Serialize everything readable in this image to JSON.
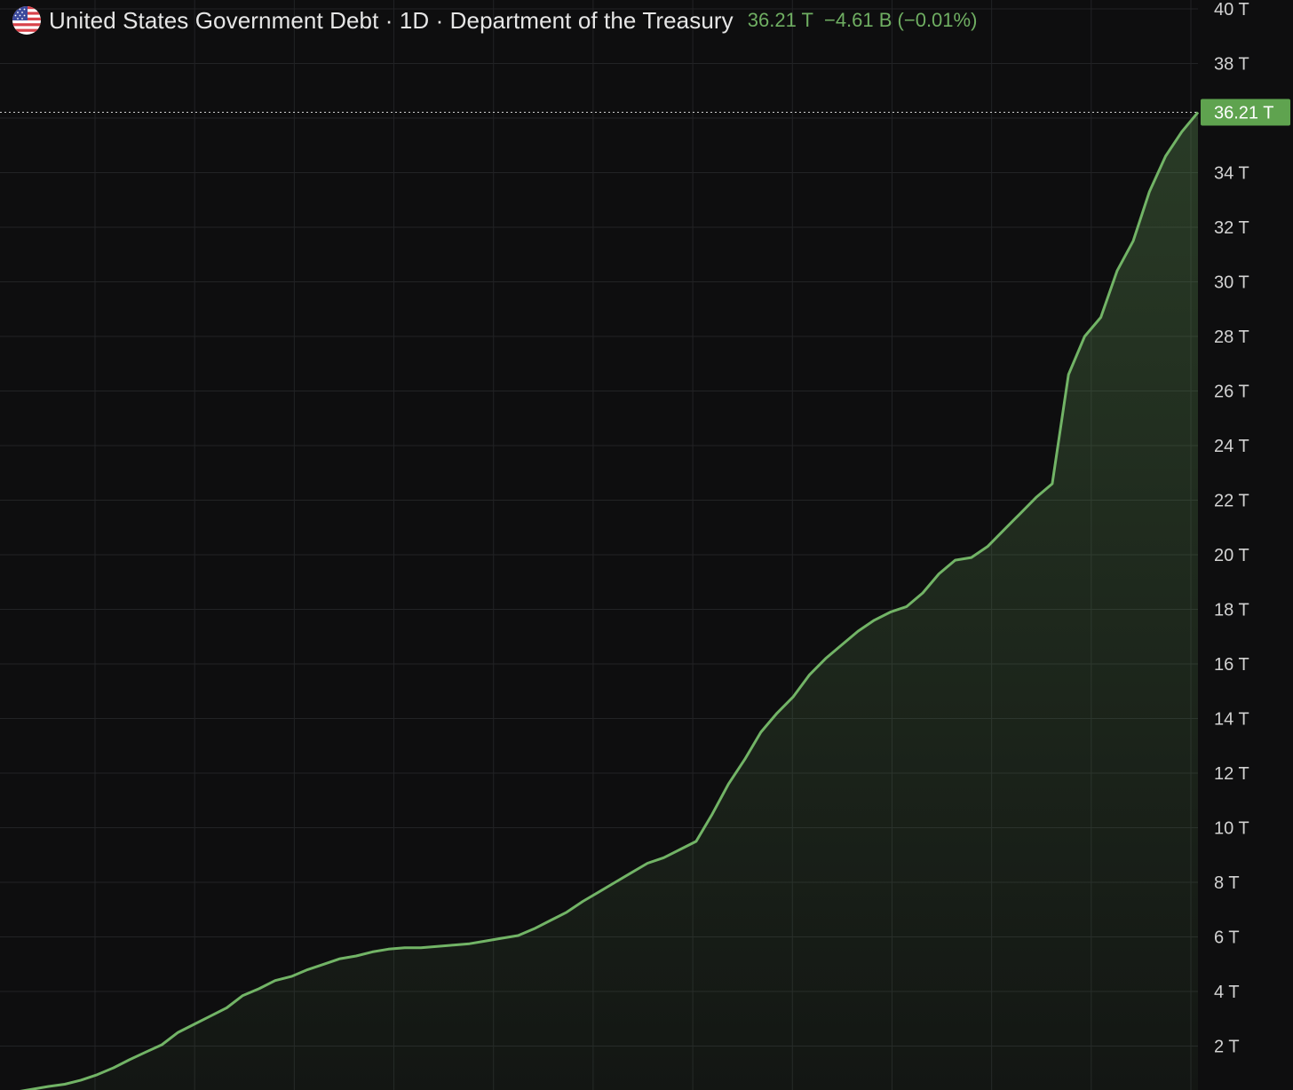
{
  "header": {
    "title": "United States Government Debt · 1D · Department of the Treasury",
    "last_value": "36.21 T",
    "change": "−4.61 B (−0.01%)"
  },
  "colors": {
    "background": "#0e0e0f",
    "grid": "#222325",
    "line": "#72b466",
    "accent": "#6fae62",
    "label_bg": "#5fa34f"
  },
  "icons": {
    "flag": "us-flag-icon"
  },
  "chart_data": {
    "type": "area",
    "ylim": [
      0,
      40
    ],
    "unit": "T",
    "y_ticks": [
      2,
      4,
      6,
      8,
      10,
      12,
      14,
      16,
      18,
      20,
      22,
      24,
      26,
      28,
      30,
      32,
      34,
      36,
      38,
      40
    ],
    "y_tick_labels": [
      "2 T",
      "4 T",
      "6 T",
      "8 T",
      "10 T",
      "12 T",
      "14 T",
      "16 T",
      "18 T",
      "20 T",
      "22 T",
      "24 T",
      "26 T",
      "28 T",
      "30 T",
      "32 T",
      "34 T",
      "36 T",
      "38 T",
      "40 T"
    ],
    "grid": true,
    "last_value": 36.21,
    "last_value_label": "36.21 T",
    "series": [
      {
        "values": [
          0.25,
          0.32,
          0.42,
          0.52,
          0.6,
          0.75,
          0.95,
          1.2,
          1.5,
          1.78,
          2.05,
          2.5,
          2.8,
          3.1,
          3.4,
          3.85,
          4.1,
          4.4,
          4.55,
          4.8,
          5.0,
          5.2,
          5.3,
          5.45,
          5.55,
          5.6,
          5.6,
          5.65,
          5.7,
          5.75,
          5.85,
          5.95,
          6.05,
          6.3,
          6.6,
          6.9,
          7.3,
          7.65,
          8.0,
          8.35,
          8.7,
          8.9,
          9.2,
          9.5,
          10.5,
          11.6,
          12.5,
          13.5,
          14.2,
          14.8,
          15.6,
          16.2,
          16.7,
          17.2,
          17.6,
          17.9,
          18.1,
          18.6,
          19.3,
          19.8,
          19.9,
          20.3,
          20.9,
          21.5,
          22.1,
          22.6,
          26.6,
          28.0,
          28.7,
          30.4,
          31.5,
          33.3,
          34.6,
          35.5,
          36.21
        ]
      }
    ]
  }
}
